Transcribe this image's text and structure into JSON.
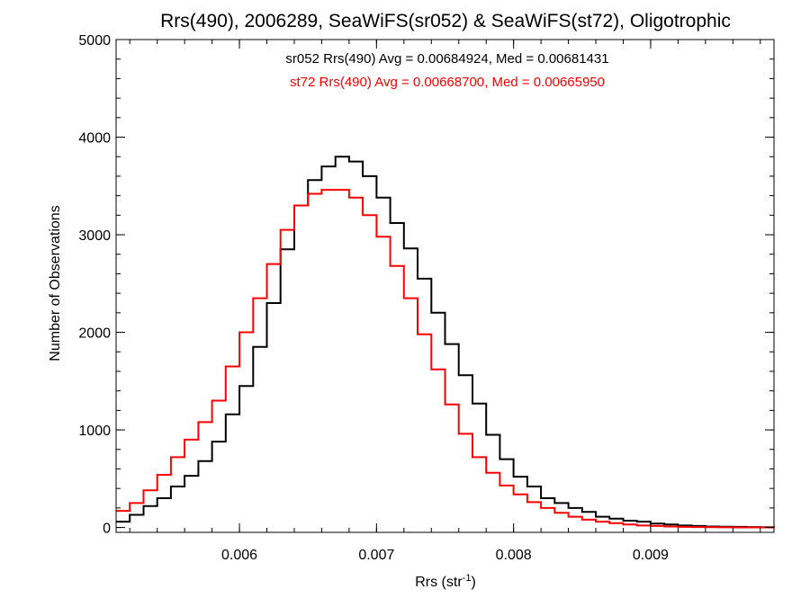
{
  "chart_data": {
    "type": "line",
    "step": true,
    "title": "Rrs(490), 2006289, SeaWiFS(sr052) & SeaWiFS(st72), Oligotrophic",
    "xlabel": "Rrs (str",
    "xlabel_sup": "-1",
    "xlabel_tail": ")",
    "ylabel": "Number of Observations",
    "xlim": [
      0.0051,
      0.0099
    ],
    "ylim": [
      -50,
      5000
    ],
    "x_ticks": [
      0.006,
      0.007,
      0.008,
      0.009
    ],
    "x_tick_labels": [
      "0.006",
      "0.007",
      "0.008",
      "0.009"
    ],
    "y_ticks": [
      0,
      1000,
      2000,
      3000,
      4000,
      5000
    ],
    "y_tick_labels": [
      "0",
      "1000",
      "2000",
      "3000",
      "4000",
      "5000"
    ],
    "grid": false,
    "legend": "top-center",
    "annotations": [
      {
        "text": "sr052 Rrs(490) Avg = 0.00684924, Med = 0.00681431",
        "color": "#000000"
      },
      {
        "text": "st72 Rrs(490) Avg = 0.00668700, Med = 0.00665950",
        "color": "#ff0000"
      }
    ],
    "series": [
      {
        "color": "#000000",
        "x": [
          0.0051,
          0.0052,
          0.0053,
          0.0054,
          0.0055,
          0.0056,
          0.0057,
          0.0058,
          0.0059,
          0.006,
          0.0061,
          0.0062,
          0.0063,
          0.0064,
          0.0065,
          0.0066,
          0.0067,
          0.0068,
          0.0069,
          0.007,
          0.0071,
          0.0072,
          0.0073,
          0.0074,
          0.0075,
          0.0076,
          0.0077,
          0.0078,
          0.0079,
          0.008,
          0.0081,
          0.0082,
          0.0083,
          0.0084,
          0.0085,
          0.0086,
          0.0087,
          0.0088,
          0.0089,
          0.009,
          0.0091,
          0.0092,
          0.0093,
          0.0094,
          0.0095,
          0.0096,
          0.0097,
          0.0098,
          0.0099
        ],
        "y": [
          60,
          130,
          220,
          300,
          420,
          530,
          680,
          880,
          1160,
          1450,
          1850,
          2300,
          2850,
          3300,
          3560,
          3700,
          3800,
          3750,
          3600,
          3380,
          3120,
          2860,
          2550,
          2200,
          1880,
          1560,
          1270,
          950,
          700,
          520,
          420,
          300,
          250,
          200,
          160,
          110,
          90,
          70,
          60,
          40,
          30,
          20,
          15,
          10,
          8,
          6,
          4,
          3,
          2
        ]
      },
      {
        "color": "#ff0000",
        "x": [
          0.0051,
          0.0052,
          0.0053,
          0.0054,
          0.0055,
          0.0056,
          0.0057,
          0.0058,
          0.0059,
          0.006,
          0.0061,
          0.0062,
          0.0063,
          0.0064,
          0.0065,
          0.0066,
          0.0067,
          0.0068,
          0.0069,
          0.007,
          0.0071,
          0.0072,
          0.0073,
          0.0074,
          0.0075,
          0.0076,
          0.0077,
          0.0078,
          0.0079,
          0.008,
          0.0081,
          0.0082,
          0.0083,
          0.0084,
          0.0085,
          0.0086,
          0.0087,
          0.0088,
          0.0089,
          0.009,
          0.0091,
          0.0092,
          0.0093,
          0.0094,
          0.0095,
          0.0096,
          0.0097,
          0.0098,
          0.0099
        ],
        "y": [
          170,
          250,
          380,
          540,
          720,
          900,
          1080,
          1300,
          1650,
          2000,
          2350,
          2700,
          3050,
          3300,
          3420,
          3460,
          3460,
          3380,
          3200,
          2980,
          2680,
          2350,
          1980,
          1620,
          1260,
          960,
          720,
          560,
          430,
          340,
          260,
          200,
          150,
          110,
          80,
          60,
          45,
          30,
          20,
          15,
          10,
          6,
          4,
          3,
          2,
          1,
          1,
          1,
          1
        ]
      }
    ]
  }
}
